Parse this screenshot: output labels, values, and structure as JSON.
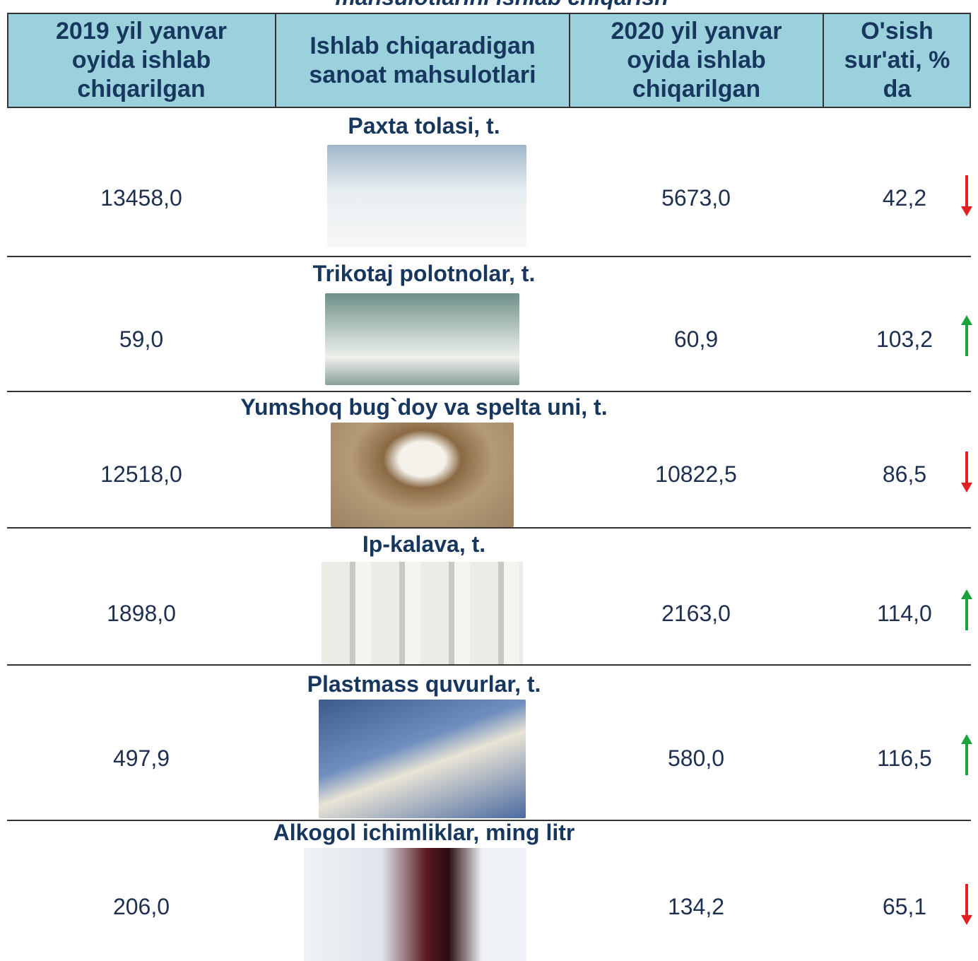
{
  "title": "mahsulotlarini ishlab chiqarish",
  "table": {
    "header": [
      "2019 yil yanvar oyida ishlab chiqarilgan",
      "Ishlab chiqaradigan sanoat mahsulotlari",
      "2020 yil yanvar oyida ishlab chiqarilgan",
      "O'sish sur'ati, % da"
    ],
    "rows": [
      {
        "product": "Paxta tolasi, t.",
        "y2019": "13458,0",
        "y2020": "5673,0",
        "growth": "42,2"
      },
      {
        "product": "Trikotaj polotnolar, t.",
        "y2019": "59,0",
        "y2020": "60,9",
        "growth": "103,2"
      },
      {
        "product": "Yumshoq bug`doy va spelta uni, t.",
        "y2019": "12518,0",
        "y2020": "10822,5",
        "growth": "86,5"
      },
      {
        "product": "Ip-kalava, t.",
        "y2019": "1898,0",
        "y2020": "2163,0",
        "growth": "114,0"
      },
      {
        "product": "Plastmass quvurlar, t.",
        "y2019": "497,9",
        "y2020": "580,0",
        "growth": "116,5"
      },
      {
        "product": "Alkogol ichimliklar, ming litr",
        "y2019": "206,0",
        "y2020": "134,2",
        "growth": "65,1"
      }
    ]
  }
}
